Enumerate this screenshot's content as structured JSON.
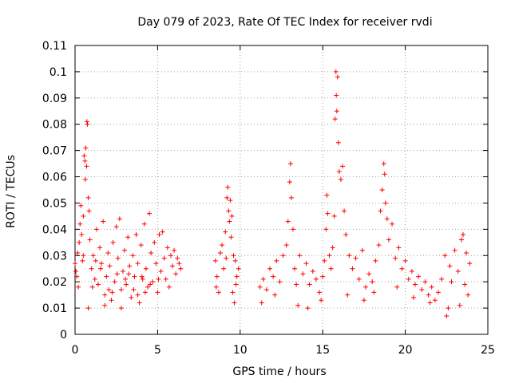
{
  "chart_data": {
    "type": "scatter",
    "title": "Day 079 of 2023, Rate Of TEC Index for receiver rvdi",
    "xlabel": "GPS time / hours",
    "ylabel": "ROTI / TECUs",
    "xlim": [
      0,
      25
    ],
    "ylim": [
      0,
      0.11
    ],
    "x_ticks": [
      0,
      5,
      10,
      15,
      20,
      25
    ],
    "x_tick_labels": [
      "0",
      "5",
      "10",
      "15",
      "20",
      "25"
    ],
    "y_ticks": [
      0,
      0.01,
      0.02,
      0.03,
      0.04,
      0.05,
      0.06,
      0.07,
      0.08,
      0.09,
      0.1,
      0.11
    ],
    "y_tick_labels": [
      "0",
      "0.01",
      "0.02",
      "0.03",
      "0.04",
      "0.05",
      "0.06",
      "0.07",
      "0.08",
      "0.09",
      "0.1",
      "0.11"
    ],
    "grid": true,
    "marker": "plus",
    "color": "#ff0000",
    "series": [
      {
        "points": [
          [
            0.0,
            0.027
          ],
          [
            0.1,
            0.022
          ],
          [
            0.15,
            0.031
          ],
          [
            0.2,
            0.018
          ],
          [
            0.25,
            0.035
          ],
          [
            0.3,
            0.042
          ],
          [
            0.35,
            0.049
          ],
          [
            0.4,
            0.038
          ],
          [
            0.45,
            0.028
          ],
          [
            0.5,
            0.045
          ],
          [
            0.55,
            0.068
          ],
          [
            0.6,
            0.066
          ],
          [
            0.62,
            0.059
          ],
          [
            0.65,
            0.071
          ],
          [
            0.7,
            0.064
          ],
          [
            0.72,
            0.081
          ],
          [
            0.75,
            0.08
          ],
          [
            0.8,
            0.052
          ],
          [
            0.85,
            0.047
          ],
          [
            0.9,
            0.036
          ],
          [
            1.0,
            0.025
          ],
          [
            1.1,
            0.03
          ],
          [
            1.2,
            0.021
          ],
          [
            1.3,
            0.04
          ],
          [
            1.4,
            0.019
          ],
          [
            1.5,
            0.033
          ],
          [
            1.6,
            0.027
          ],
          [
            1.7,
            0.043
          ],
          [
            1.8,
            0.015
          ],
          [
            1.9,
            0.022
          ],
          [
            2.0,
            0.031
          ],
          [
            2.1,
            0.026
          ],
          [
            2.2,
            0.013
          ],
          [
            2.3,
            0.035
          ],
          [
            2.4,
            0.02
          ],
          [
            2.5,
            0.041
          ],
          [
            2.6,
            0.029
          ],
          [
            2.7,
            0.044
          ],
          [
            2.8,
            0.017
          ],
          [
            2.9,
            0.024
          ],
          [
            3.0,
            0.032
          ],
          [
            3.1,
            0.019
          ],
          [
            3.2,
            0.037
          ],
          [
            3.3,
            0.026
          ],
          [
            3.4,
            0.014
          ],
          [
            3.5,
            0.03
          ],
          [
            3.6,
            0.022
          ],
          [
            3.7,
            0.038
          ],
          [
            3.8,
            0.027
          ],
          [
            3.9,
            0.012
          ],
          [
            4.0,
            0.034
          ],
          [
            4.1,
            0.021
          ],
          [
            4.2,
            0.042
          ],
          [
            4.3,
            0.025
          ],
          [
            4.4,
            0.018
          ],
          [
            4.5,
            0.046
          ],
          [
            4.6,
            0.031
          ],
          [
            4.7,
            0.02
          ],
          [
            4.8,
            0.035
          ],
          [
            4.9,
            0.027
          ],
          [
            5.0,
            0.016
          ],
          [
            5.1,
            0.038
          ],
          [
            5.2,
            0.024
          ],
          [
            5.3,
            0.039
          ],
          [
            5.4,
            0.029
          ],
          [
            5.5,
            0.021
          ],
          [
            5.6,
            0.033
          ],
          [
            5.7,
            0.018
          ],
          [
            5.8,
            0.03
          ],
          [
            5.9,
            0.026
          ],
          [
            6.0,
            0.032
          ],
          [
            6.1,
            0.023
          ],
          [
            6.2,
            0.029
          ],
          [
            6.3,
            0.027
          ],
          [
            6.4,
            0.025
          ],
          [
            0.05,
            0.024
          ],
          [
            0.5,
            0.03
          ],
          [
            1.05,
            0.018
          ],
          [
            1.55,
            0.025
          ],
          [
            2.05,
            0.017
          ],
          [
            2.55,
            0.023
          ],
          [
            3.05,
            0.021
          ],
          [
            3.55,
            0.017
          ],
          [
            4.05,
            0.022
          ],
          [
            4.55,
            0.019
          ],
          [
            5.05,
            0.021
          ],
          [
            1.25,
            0.028
          ],
          [
            2.25,
            0.016
          ],
          [
            3.25,
            0.023
          ],
          [
            4.25,
            0.016
          ],
          [
            0.8,
            0.01
          ],
          [
            1.8,
            0.011
          ],
          [
            2.8,
            0.01
          ],
          [
            3.8,
            0.015
          ],
          [
            8.5,
            0.028
          ],
          [
            8.6,
            0.022
          ],
          [
            8.7,
            0.016
          ],
          [
            8.8,
            0.031
          ],
          [
            8.9,
            0.034
          ],
          [
            9.0,
            0.025
          ],
          [
            9.1,
            0.039
          ],
          [
            9.2,
            0.052
          ],
          [
            9.25,
            0.056
          ],
          [
            9.3,
            0.047
          ],
          [
            9.35,
            0.043
          ],
          [
            9.4,
            0.051
          ],
          [
            9.45,
            0.037
          ],
          [
            9.5,
            0.045
          ],
          [
            9.55,
            0.016
          ],
          [
            9.6,
            0.03
          ],
          [
            9.65,
            0.012
          ],
          [
            9.7,
            0.028
          ],
          [
            9.8,
            0.022
          ],
          [
            9.9,
            0.025
          ],
          [
            8.55,
            0.018
          ],
          [
            9.15,
            0.029
          ],
          [
            9.75,
            0.019
          ],
          [
            11.2,
            0.018
          ],
          [
            11.4,
            0.021
          ],
          [
            11.6,
            0.017
          ],
          [
            11.8,
            0.025
          ],
          [
            12.0,
            0.022
          ],
          [
            12.2,
            0.028
          ],
          [
            12.4,
            0.02
          ],
          [
            12.6,
            0.03
          ],
          [
            12.8,
            0.034
          ],
          [
            12.9,
            0.043
          ],
          [
            13.0,
            0.058
          ],
          [
            13.05,
            0.065
          ],
          [
            13.1,
            0.052
          ],
          [
            13.2,
            0.04
          ],
          [
            13.3,
            0.025
          ],
          [
            13.4,
            0.019
          ],
          [
            13.6,
            0.03
          ],
          [
            13.8,
            0.023
          ],
          [
            14.0,
            0.027
          ],
          [
            14.2,
            0.019
          ],
          [
            14.4,
            0.024
          ],
          [
            14.6,
            0.021
          ],
          [
            14.8,
            0.016
          ],
          [
            15.0,
            0.022
          ],
          [
            15.1,
            0.028
          ],
          [
            15.2,
            0.04
          ],
          [
            15.25,
            0.053
          ],
          [
            15.3,
            0.046
          ],
          [
            15.4,
            0.03
          ],
          [
            15.5,
            0.025
          ],
          [
            15.6,
            0.033
          ],
          [
            15.7,
            0.045
          ],
          [
            15.75,
            0.082
          ],
          [
            15.8,
            0.1
          ],
          [
            15.82,
            0.091
          ],
          [
            15.85,
            0.085
          ],
          [
            15.9,
            0.098
          ],
          [
            15.95,
            0.073
          ],
          [
            16.0,
            0.062
          ],
          [
            16.1,
            0.059
          ],
          [
            16.2,
            0.064
          ],
          [
            16.3,
            0.047
          ],
          [
            16.4,
            0.038
          ],
          [
            16.6,
            0.03
          ],
          [
            16.8,
            0.025
          ],
          [
            17.0,
            0.029
          ],
          [
            17.2,
            0.021
          ],
          [
            17.4,
            0.032
          ],
          [
            17.6,
            0.018
          ],
          [
            17.8,
            0.023
          ],
          [
            18.0,
            0.02
          ],
          [
            18.2,
            0.028
          ],
          [
            18.4,
            0.034
          ],
          [
            18.5,
            0.047
          ],
          [
            18.6,
            0.055
          ],
          [
            18.7,
            0.065
          ],
          [
            18.75,
            0.061
          ],
          [
            18.8,
            0.05
          ],
          [
            18.9,
            0.044
          ],
          [
            19.0,
            0.036
          ],
          [
            19.2,
            0.042
          ],
          [
            19.4,
            0.029
          ],
          [
            19.6,
            0.033
          ],
          [
            19.8,
            0.025
          ],
          [
            20.0,
            0.028
          ],
          [
            20.2,
            0.021
          ],
          [
            20.4,
            0.024
          ],
          [
            20.6,
            0.019
          ],
          [
            20.8,
            0.022
          ],
          [
            21.0,
            0.017
          ],
          [
            21.2,
            0.02
          ],
          [
            21.4,
            0.015
          ],
          [
            21.6,
            0.018
          ],
          [
            21.8,
            0.013
          ],
          [
            22.0,
            0.016
          ],
          [
            22.2,
            0.021
          ],
          [
            22.4,
            0.03
          ],
          [
            22.6,
            0.01
          ],
          [
            22.7,
            0.026
          ],
          [
            22.8,
            0.02
          ],
          [
            23.0,
            0.032
          ],
          [
            23.2,
            0.024
          ],
          [
            23.4,
            0.036
          ],
          [
            23.5,
            0.038
          ],
          [
            23.6,
            0.019
          ],
          [
            23.7,
            0.031
          ],
          [
            23.8,
            0.015
          ],
          [
            23.9,
            0.027
          ],
          [
            11.3,
            0.012
          ],
          [
            12.1,
            0.015
          ],
          [
            13.5,
            0.011
          ],
          [
            14.1,
            0.01
          ],
          [
            14.9,
            0.013
          ],
          [
            16.5,
            0.015
          ],
          [
            17.5,
            0.013
          ],
          [
            18.1,
            0.016
          ],
          [
            19.5,
            0.018
          ],
          [
            20.5,
            0.014
          ],
          [
            21.5,
            0.012
          ],
          [
            22.5,
            0.007
          ],
          [
            23.3,
            0.011
          ]
        ]
      }
    ]
  }
}
